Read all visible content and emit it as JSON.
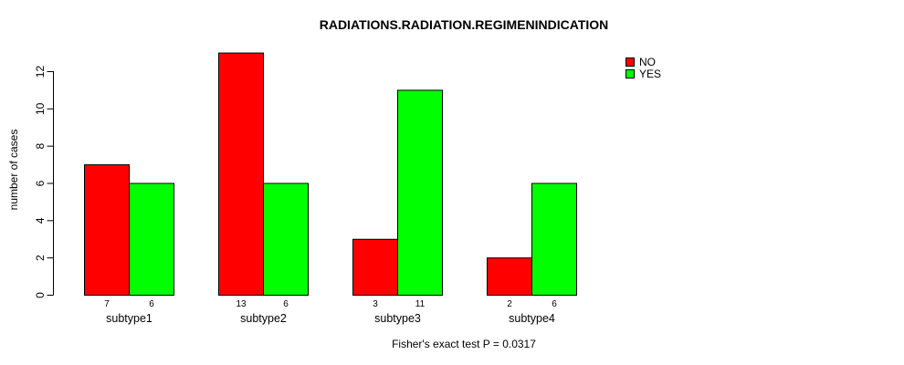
{
  "chart_data": {
    "type": "bar",
    "title": "RADIATIONS.RADIATION.REGIMENINDICATION",
    "ylabel": "number of cases",
    "xlabel": "",
    "annotation": "Fisher's exact test P = 0.0317",
    "categories": [
      "subtype1",
      "subtype2",
      "subtype3",
      "subtype4"
    ],
    "series": [
      {
        "name": "NO",
        "color": "#FF0000",
        "values": [
          7,
          13,
          3,
          2
        ]
      },
      {
        "name": "YES",
        "color": "#00FF00",
        "values": [
          6,
          6,
          11,
          6
        ]
      }
    ],
    "ylim": [
      0,
      12
    ],
    "yticks": [
      0,
      2,
      4,
      6,
      8,
      10,
      12
    ],
    "bar_value_labels": [
      [
        7,
        6
      ],
      [
        13,
        6
      ],
      [
        3,
        11
      ],
      [
        2,
        6
      ]
    ],
    "legend_position": "top-right",
    "legend_entries": [
      "NO",
      "YES"
    ],
    "grid": false
  }
}
